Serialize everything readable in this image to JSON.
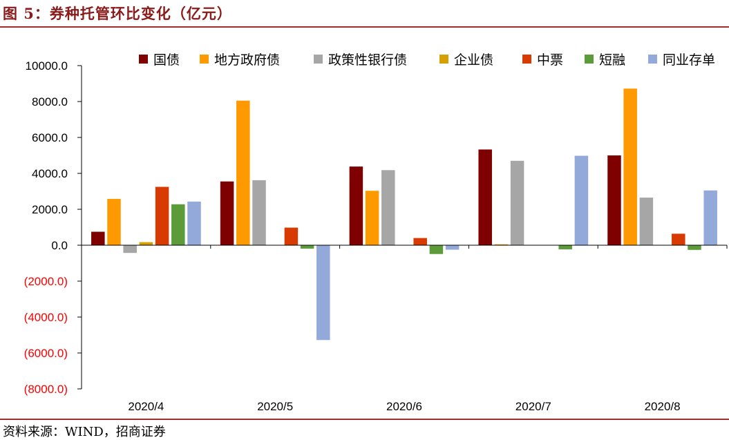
{
  "title": "图 5：券种托管环比变化（亿元）",
  "source": "资料来源：WIND，招商证券",
  "colors": {
    "rule": "#9b2d2d",
    "title": "#8b1a1a",
    "negative_tick": "#ff0000",
    "axis": "#000000"
  },
  "chart_data": {
    "type": "bar",
    "title": "",
    "xlabel": "",
    "ylabel": "",
    "categories": [
      "2020/4",
      "2020/5",
      "2020/6",
      "2020/7",
      "2020/8"
    ],
    "ylim": [
      -8000,
      10000
    ],
    "yticks": [
      10000,
      8000,
      6000,
      4000,
      2000,
      0,
      -2000,
      -4000,
      -6000,
      -8000
    ],
    "ytick_labels": [
      "10000.0",
      "8000.0",
      "6000.0",
      "4000.0",
      "2000.0",
      "0.0",
      "(2000.0)",
      "(4000.0)",
      "(6000.0)",
      "(8000.0)"
    ],
    "grid": false,
    "legend_position": "top",
    "series": [
      {
        "name": "国债",
        "color": "#7f0000",
        "values": [
          750,
          3550,
          4380,
          5330,
          5000
        ]
      },
      {
        "name": "地方政府债",
        "color": "#ff9900",
        "values": [
          2580,
          8050,
          3030,
          50,
          8720
        ]
      },
      {
        "name": "政策性银行债",
        "color": "#a6a6a6",
        "values": [
          -430,
          3620,
          4180,
          4700,
          2650
        ]
      },
      {
        "name": "企业债",
        "color": "#d6a100",
        "values": [
          170,
          0,
          0,
          0,
          0
        ]
      },
      {
        "name": "中票",
        "color": "#d83b01",
        "values": [
          3250,
          980,
          400,
          0,
          640
        ]
      },
      {
        "name": "短融",
        "color": "#5b9b3a",
        "values": [
          2280,
          -190,
          -490,
          -230,
          -260
        ]
      },
      {
        "name": "同业存单",
        "color": "#92a9d9",
        "values": [
          2430,
          -5280,
          -250,
          4980,
          3050
        ]
      }
    ]
  }
}
